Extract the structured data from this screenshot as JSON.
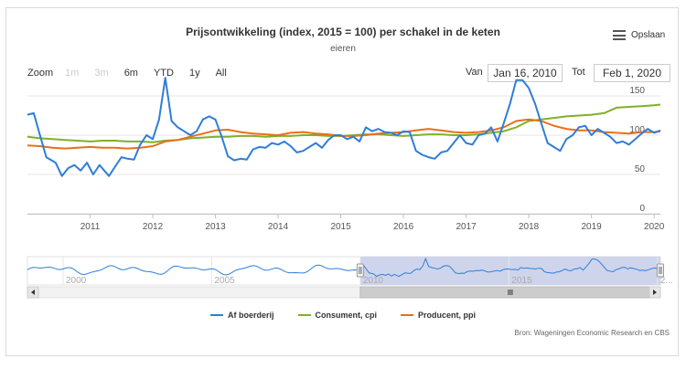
{
  "header": {
    "title": "Prijsontwikkeling (index, 2015 = 100) per schakel in de keten",
    "subtitle": "eieren"
  },
  "export": {
    "label": "Opslaan",
    "icon": "hamburger-menu-icon"
  },
  "zoom": {
    "label": "Zoom",
    "buttons": [
      {
        "label": "1m",
        "enabled": false
      },
      {
        "label": "3m",
        "enabled": false
      },
      {
        "label": "6m",
        "enabled": true
      },
      {
        "label": "YTD",
        "enabled": true
      },
      {
        "label": "1y",
        "enabled": true
      },
      {
        "label": "All",
        "enabled": true
      }
    ]
  },
  "range": {
    "from_label": "Van",
    "from_value": "Jan 16, 2010",
    "to_label": "Tot",
    "to_value": "Feb 1, 2020"
  },
  "credits": "Bron: Wageningen Economic Research en CBS",
  "colors": {
    "boerderij": "#2f7ed8",
    "consument": "#7fb02a",
    "producent": "#e8701a",
    "navigator_mask": "#c5cde8",
    "navigator_line": "#2f7ed8"
  },
  "chart_data": {
    "type": "line",
    "title": "Prijsontwikkeling (index, 2015 = 100) per schakel in de keten",
    "subtitle": "eieren",
    "xlabel": "",
    "ylabel": "",
    "xlim": [
      2010.0,
      2020.1
    ],
    "ylim": [
      0,
      150
    ],
    "y_ticks": [
      0,
      50,
      100,
      150
    ],
    "x_ticks": [
      2011,
      2012,
      2013,
      2014,
      2015,
      2016,
      2017,
      2018,
      2019,
      2020
    ],
    "grid": true,
    "legend_position": "bottom-center",
    "series": [
      {
        "name": "Af boerderij",
        "color": "#2f7ed8",
        "x": [
          2010.0,
          2010.1,
          2010.2,
          2010.3,
          2010.45,
          2010.55,
          2010.65,
          2010.75,
          2010.85,
          2010.95,
          2011.05,
          2011.15,
          2011.3,
          2011.4,
          2011.5,
          2011.6,
          2011.7,
          2011.8,
          2011.9,
          2012.0,
          2012.1,
          2012.2,
          2012.3,
          2012.4,
          2012.5,
          2012.6,
          2012.7,
          2012.8,
          2012.9,
          2013.0,
          2013.1,
          2013.2,
          2013.3,
          2013.4,
          2013.5,
          2013.6,
          2013.7,
          2013.8,
          2013.9,
          2014.0,
          2014.1,
          2014.2,
          2014.3,
          2014.4,
          2014.5,
          2014.6,
          2014.7,
          2014.8,
          2014.9,
          2015.0,
          2015.1,
          2015.2,
          2015.3,
          2015.4,
          2015.5,
          2015.6,
          2015.7,
          2015.8,
          2015.9,
          2016.0,
          2016.1,
          2016.2,
          2016.3,
          2016.4,
          2016.5,
          2016.6,
          2016.7,
          2016.8,
          2016.9,
          2017.0,
          2017.1,
          2017.2,
          2017.3,
          2017.4,
          2017.5,
          2017.6,
          2017.7,
          2017.8,
          2017.9,
          2018.0,
          2018.1,
          2018.2,
          2018.3,
          2018.4,
          2018.5,
          2018.6,
          2018.7,
          2018.8,
          2018.9,
          2019.0,
          2019.1,
          2019.2,
          2019.3,
          2019.4,
          2019.5,
          2019.6,
          2019.7,
          2019.8,
          2019.9,
          2020.0,
          2020.1
        ],
        "y": [
          126,
          128,
          100,
          72,
          65,
          48,
          58,
          62,
          55,
          65,
          50,
          62,
          48,
          60,
          72,
          70,
          69,
          88,
          100,
          95,
          120,
          173,
          118,
          110,
          105,
          100,
          105,
          120,
          124,
          120,
          98,
          73,
          68,
          70,
          69,
          82,
          85,
          84,
          90,
          88,
          92,
          86,
          78,
          80,
          85,
          90,
          84,
          94,
          100,
          100,
          95,
          98,
          92,
          110,
          105,
          108,
          104,
          103,
          100,
          105,
          104,
          80,
          75,
          72,
          70,
          78,
          80,
          90,
          100,
          90,
          88,
          100,
          102,
          110,
          92,
          115,
          140,
          170,
          170,
          160,
          140,
          115,
          90,
          85,
          80,
          95,
          100,
          110,
          112,
          100,
          108,
          103,
          98,
          90,
          92,
          88,
          95,
          102,
          108,
          103,
          106
        ]
      },
      {
        "name": "Consument, cpi",
        "color": "#7fb02a",
        "x": [
          2010.0,
          2010.2,
          2010.4,
          2010.6,
          2010.8,
          2011.0,
          2011.2,
          2011.4,
          2011.6,
          2011.8,
          2012.0,
          2012.2,
          2012.4,
          2012.6,
          2012.8,
          2013.0,
          2013.2,
          2013.4,
          2013.6,
          2013.8,
          2014.0,
          2014.2,
          2014.4,
          2014.6,
          2014.8,
          2015.0,
          2015.2,
          2015.4,
          2015.6,
          2015.8,
          2016.0,
          2016.2,
          2016.4,
          2016.6,
          2016.8,
          2017.0,
          2017.2,
          2017.4,
          2017.6,
          2017.8,
          2018.0,
          2018.2,
          2018.4,
          2018.6,
          2018.8,
          2019.0,
          2019.2,
          2019.4,
          2019.6,
          2019.8,
          2020.0,
          2020.1
        ],
        "y": [
          98,
          96,
          95,
          94,
          93,
          92,
          93,
          93,
          92,
          92,
          91,
          93,
          94,
          96,
          97,
          98,
          98,
          99,
          99,
          98,
          99,
          99,
          100,
          100,
          99,
          99,
          100,
          101,
          101,
          100,
          99,
          100,
          101,
          101,
          100,
          100,
          101,
          103,
          105,
          110,
          118,
          120,
          122,
          124,
          125,
          126,
          128,
          135,
          136,
          137,
          138,
          139
        ]
      },
      {
        "name": "Producent, ppi",
        "color": "#e8701a",
        "x": [
          2010.0,
          2010.2,
          2010.4,
          2010.6,
          2010.8,
          2011.0,
          2011.2,
          2011.4,
          2011.6,
          2011.8,
          2012.0,
          2012.2,
          2012.4,
          2012.6,
          2012.8,
          2013.0,
          2013.2,
          2013.4,
          2013.6,
          2013.8,
          2014.0,
          2014.2,
          2014.4,
          2014.6,
          2014.8,
          2015.0,
          2015.2,
          2015.4,
          2015.6,
          2015.8,
          2016.0,
          2016.2,
          2016.4,
          2016.6,
          2016.8,
          2017.0,
          2017.2,
          2017.4,
          2017.6,
          2017.8,
          2018.0,
          2018.2,
          2018.4,
          2018.6,
          2018.8,
          2019.0,
          2019.2,
          2019.4,
          2019.6,
          2019.8,
          2020.0,
          2020.1
        ],
        "y": [
          87,
          86,
          84,
          83,
          84,
          85,
          84,
          84,
          83,
          84,
          86,
          92,
          94,
          98,
          102,
          106,
          107,
          104,
          102,
          101,
          100,
          103,
          104,
          102,
          101,
          99,
          99,
          100,
          102,
          103,
          104,
          106,
          108,
          106,
          104,
          103,
          104,
          106,
          110,
          118,
          120,
          118,
          112,
          108,
          106,
          106,
          104,
          103,
          102,
          104,
          104,
          105
        ]
      }
    ],
    "navigator": {
      "x_ticks": [
        2000,
        2005,
        2010,
        2015,
        2020
      ],
      "x_labels": [
        "2000",
        "2005",
        "2010",
        "2015",
        "2..."
      ],
      "xlim": [
        1998.8,
        2020.1
      ],
      "selected": [
        2010.0,
        2020.1
      ]
    }
  }
}
